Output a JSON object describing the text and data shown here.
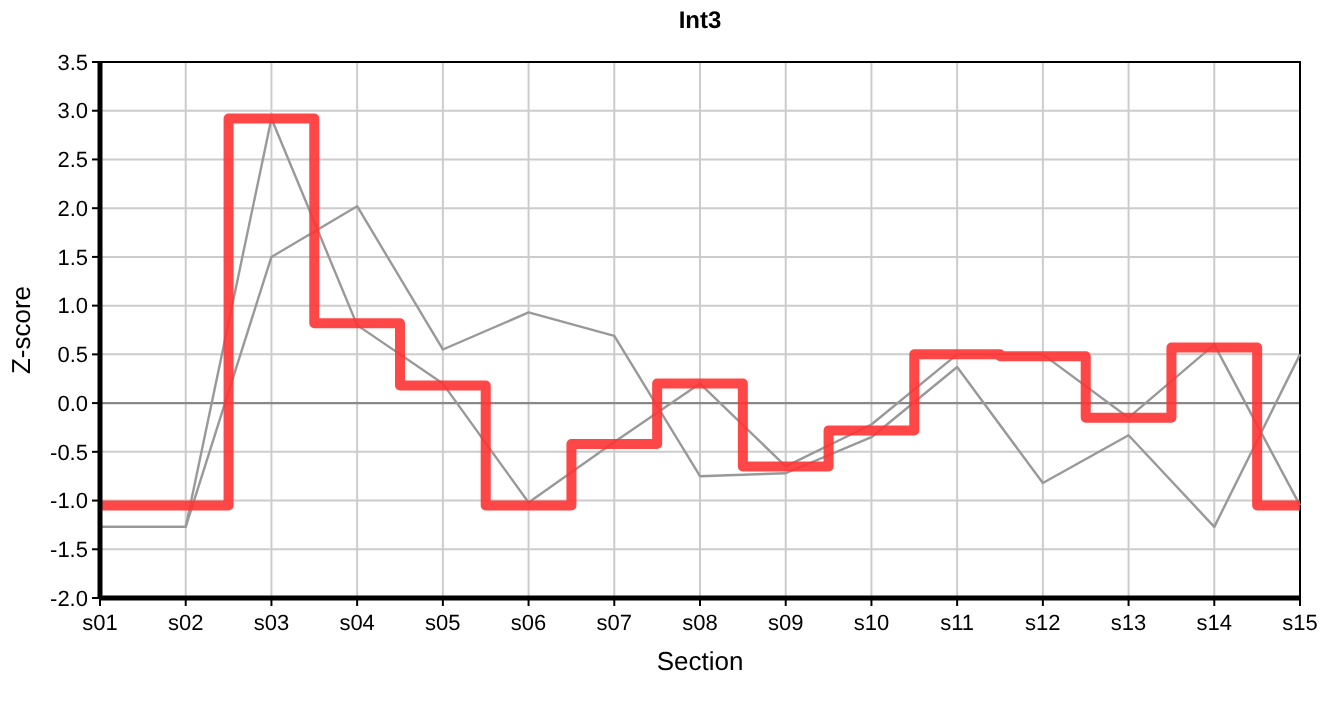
{
  "chart_data": {
    "type": "line",
    "title": "Int3",
    "xlabel": "Section",
    "ylabel": "Z-score",
    "categories": [
      "s01",
      "s02",
      "s03",
      "s04",
      "s05",
      "s06",
      "s07",
      "s08",
      "s09",
      "s10",
      "s11",
      "s12",
      "s13",
      "s14",
      "s15"
    ],
    "series": [
      {
        "color": "#999999",
        "values": [
          -1.27,
          -1.27,
          2.92,
          0.8,
          0.2,
          -1.02,
          -0.4,
          0.2,
          -0.65,
          -0.22,
          0.5,
          0.5,
          -0.15,
          0.6,
          -1.05
        ]
      },
      {
        "color": "#999999",
        "values": [
          -1.27,
          -1.27,
          1.5,
          2.02,
          0.55,
          0.93,
          0.69,
          -0.75,
          -0.72,
          -0.35,
          0.37,
          -0.82,
          -0.33,
          -1.27,
          0.5
        ]
      },
      {
        "type": "step",
        "color": "#ff3333",
        "values": [
          -1.05,
          -1.05,
          2.92,
          0.82,
          0.18,
          -1.05,
          -0.42,
          0.2,
          -0.65,
          -0.28,
          0.5,
          0.48,
          -0.15,
          0.57,
          -1.05
        ]
      }
    ],
    "ylim": [
      -2,
      3.5
    ],
    "yticks": [
      {
        "value": -2,
        "label": "-2.0"
      },
      {
        "value": -1.5,
        "label": "-1.5"
      },
      {
        "value": -1,
        "label": "-1.0"
      },
      {
        "value": -0.5,
        "label": "-0.5"
      },
      {
        "value": 0,
        "label": "0.0"
      },
      {
        "value": 0.5,
        "label": "0.5"
      },
      {
        "value": 1,
        "label": "1.0"
      },
      {
        "value": 1.5,
        "label": "1.5"
      },
      {
        "value": 2,
        "label": "2.0"
      },
      {
        "value": 2.5,
        "label": "2.5"
      },
      {
        "value": 3,
        "label": "3.0"
      },
      {
        "value": 3.5,
        "label": "3.5"
      }
    ],
    "ref_lines": [
      {
        "axis": "y",
        "value": 0,
        "color": "#888888"
      }
    ],
    "grid": true,
    "marker": "none",
    "line_style": "solid"
  }
}
